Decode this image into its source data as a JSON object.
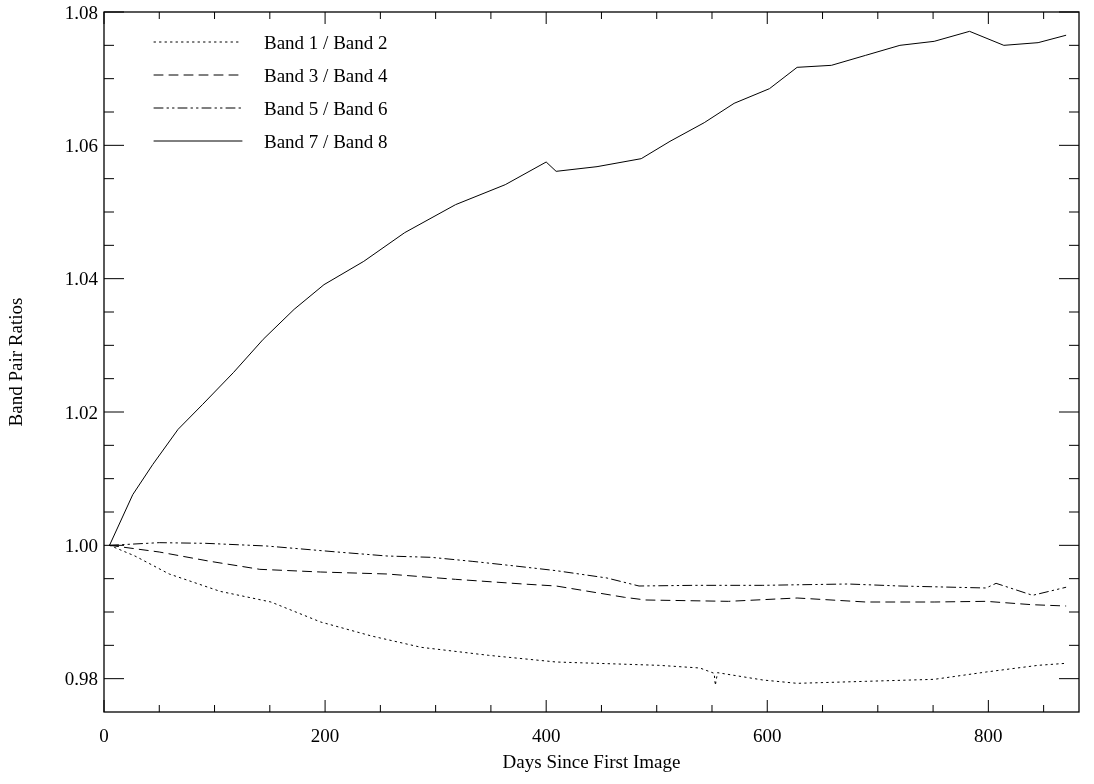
{
  "chart_data": {
    "type": "line",
    "xlabel": "Days Since First Image",
    "ylabel": "Band Pair Ratios",
    "xlim": [
      0,
      882
    ],
    "ylim": [
      0.975,
      1.08
    ],
    "xticks": [
      0,
      {
        "value": 50,
        "label": null
      },
      {
        "value": 100,
        "label": null
      },
      {
        "value": 150,
        "label": null
      },
      200,
      {
        "value": 250,
        "label": null
      },
      {
        "value": 300,
        "label": null
      },
      {
        "value": 350,
        "label": null
      },
      400,
      {
        "value": 450,
        "label": null
      },
      {
        "value": 500,
        "label": null
      },
      {
        "value": 550,
        "label": null
      },
      600,
      {
        "value": 650,
        "label": null
      },
      {
        "value": 700,
        "label": null
      },
      {
        "value": 750,
        "label": null
      },
      800,
      {
        "value": 850,
        "label": null
      }
    ],
    "yticks": [
      {
        "value": 0.98,
        "label": "0.98"
      },
      {
        "value": 0.985,
        "label": null
      },
      {
        "value": 0.99,
        "label": null
      },
      {
        "value": 0.995,
        "label": null
      },
      {
        "value": 1.0,
        "label": "1.00"
      },
      {
        "value": 1.005,
        "label": null
      },
      {
        "value": 1.01,
        "label": null
      },
      {
        "value": 1.015,
        "label": null
      },
      {
        "value": 1.02,
        "label": "1.02"
      },
      {
        "value": 1.025,
        "label": null
      },
      {
        "value": 1.03,
        "label": null
      },
      {
        "value": 1.035,
        "label": null
      },
      {
        "value": 1.04,
        "label": "1.04"
      },
      {
        "value": 1.045,
        "label": null
      },
      {
        "value": 1.05,
        "label": null
      },
      {
        "value": 1.055,
        "label": null
      },
      {
        "value": 1.06,
        "label": "1.06"
      },
      {
        "value": 1.065,
        "label": null
      },
      {
        "value": 1.07,
        "label": null
      },
      {
        "value": 1.075,
        "label": null
      },
      {
        "value": 1.08,
        "label": "1.08"
      }
    ],
    "grid": false,
    "legend": "top left",
    "marker": "none",
    "series": [
      {
        "name": "Band 1 / Band 2",
        "color": "#000000",
        "line_style": "dotted",
        "x": [
          5,
          28,
          59,
          105,
          151,
          196,
          242,
          287,
          348,
          409,
          502,
          539,
          552,
          553,
          555,
          596,
          627,
          689,
          751,
          798,
          845,
          870
        ],
        "values": [
          1.0,
          0.9984,
          0.9957,
          0.9931,
          0.9915,
          0.9885,
          0.9864,
          0.9847,
          0.9835,
          0.9825,
          0.982,
          0.9816,
          0.9808,
          0.979,
          0.9809,
          0.9798,
          0.9793,
          0.9796,
          0.9799,
          0.981,
          0.982,
          0.9823
        ]
      },
      {
        "name": "Band 3 / Band 4",
        "color": "#000000",
        "line_style": "dashed",
        "x": [
          5,
          50,
          96,
          141,
          196,
          256,
          318,
          379,
          409,
          471,
          490,
          565,
          627,
          689,
          751,
          798,
          839,
          870
        ],
        "values": [
          1.0,
          0.999,
          0.9976,
          0.9964,
          0.996,
          0.9957,
          0.9949,
          0.9942,
          0.9939,
          0.9922,
          0.9918,
          0.9916,
          0.9921,
          0.9915,
          0.9915,
          0.9916,
          0.9911,
          0.9909
        ]
      },
      {
        "name": "Band 5 / Band 6",
        "color": "#000000",
        "line_style": "dashdot",
        "x": [
          5,
          50,
          92,
          147,
          211,
          256,
          296,
          333,
          372,
          409,
          455,
          484,
          534,
          596,
          673,
          720,
          798,
          807,
          840,
          870
        ],
        "values": [
          1.0,
          1.0004,
          1.0003,
          0.9999,
          0.999,
          0.9984,
          0.9982,
          0.9976,
          0.9969,
          0.9962,
          0.9951,
          0.9939,
          0.994,
          0.994,
          0.9942,
          0.9939,
          0.9936,
          0.9943,
          0.9925,
          0.9937
        ]
      },
      {
        "name": "Band 7 / Band 8",
        "color": "#000000",
        "line_style": "solid",
        "x": [
          5,
          26,
          44,
          67,
          89,
          117,
          144,
          172,
          199,
          235,
          272,
          318,
          363,
          400,
          409,
          446,
          486,
          512,
          543,
          570,
          602,
          627,
          658,
          689,
          720,
          751,
          783,
          814,
          845,
          870
        ],
        "values": [
          1.0,
          1.0076,
          1.0121,
          1.0174,
          1.0211,
          1.0259,
          1.0309,
          1.0354,
          1.0391,
          1.0426,
          1.0469,
          1.0511,
          1.0541,
          1.0575,
          1.0561,
          1.0568,
          1.058,
          1.0606,
          1.0634,
          1.0663,
          1.0685,
          1.0717,
          1.072,
          1.0735,
          1.075,
          1.0756,
          1.0771,
          1.075,
          1.0754,
          1.0765
        ]
      }
    ]
  }
}
